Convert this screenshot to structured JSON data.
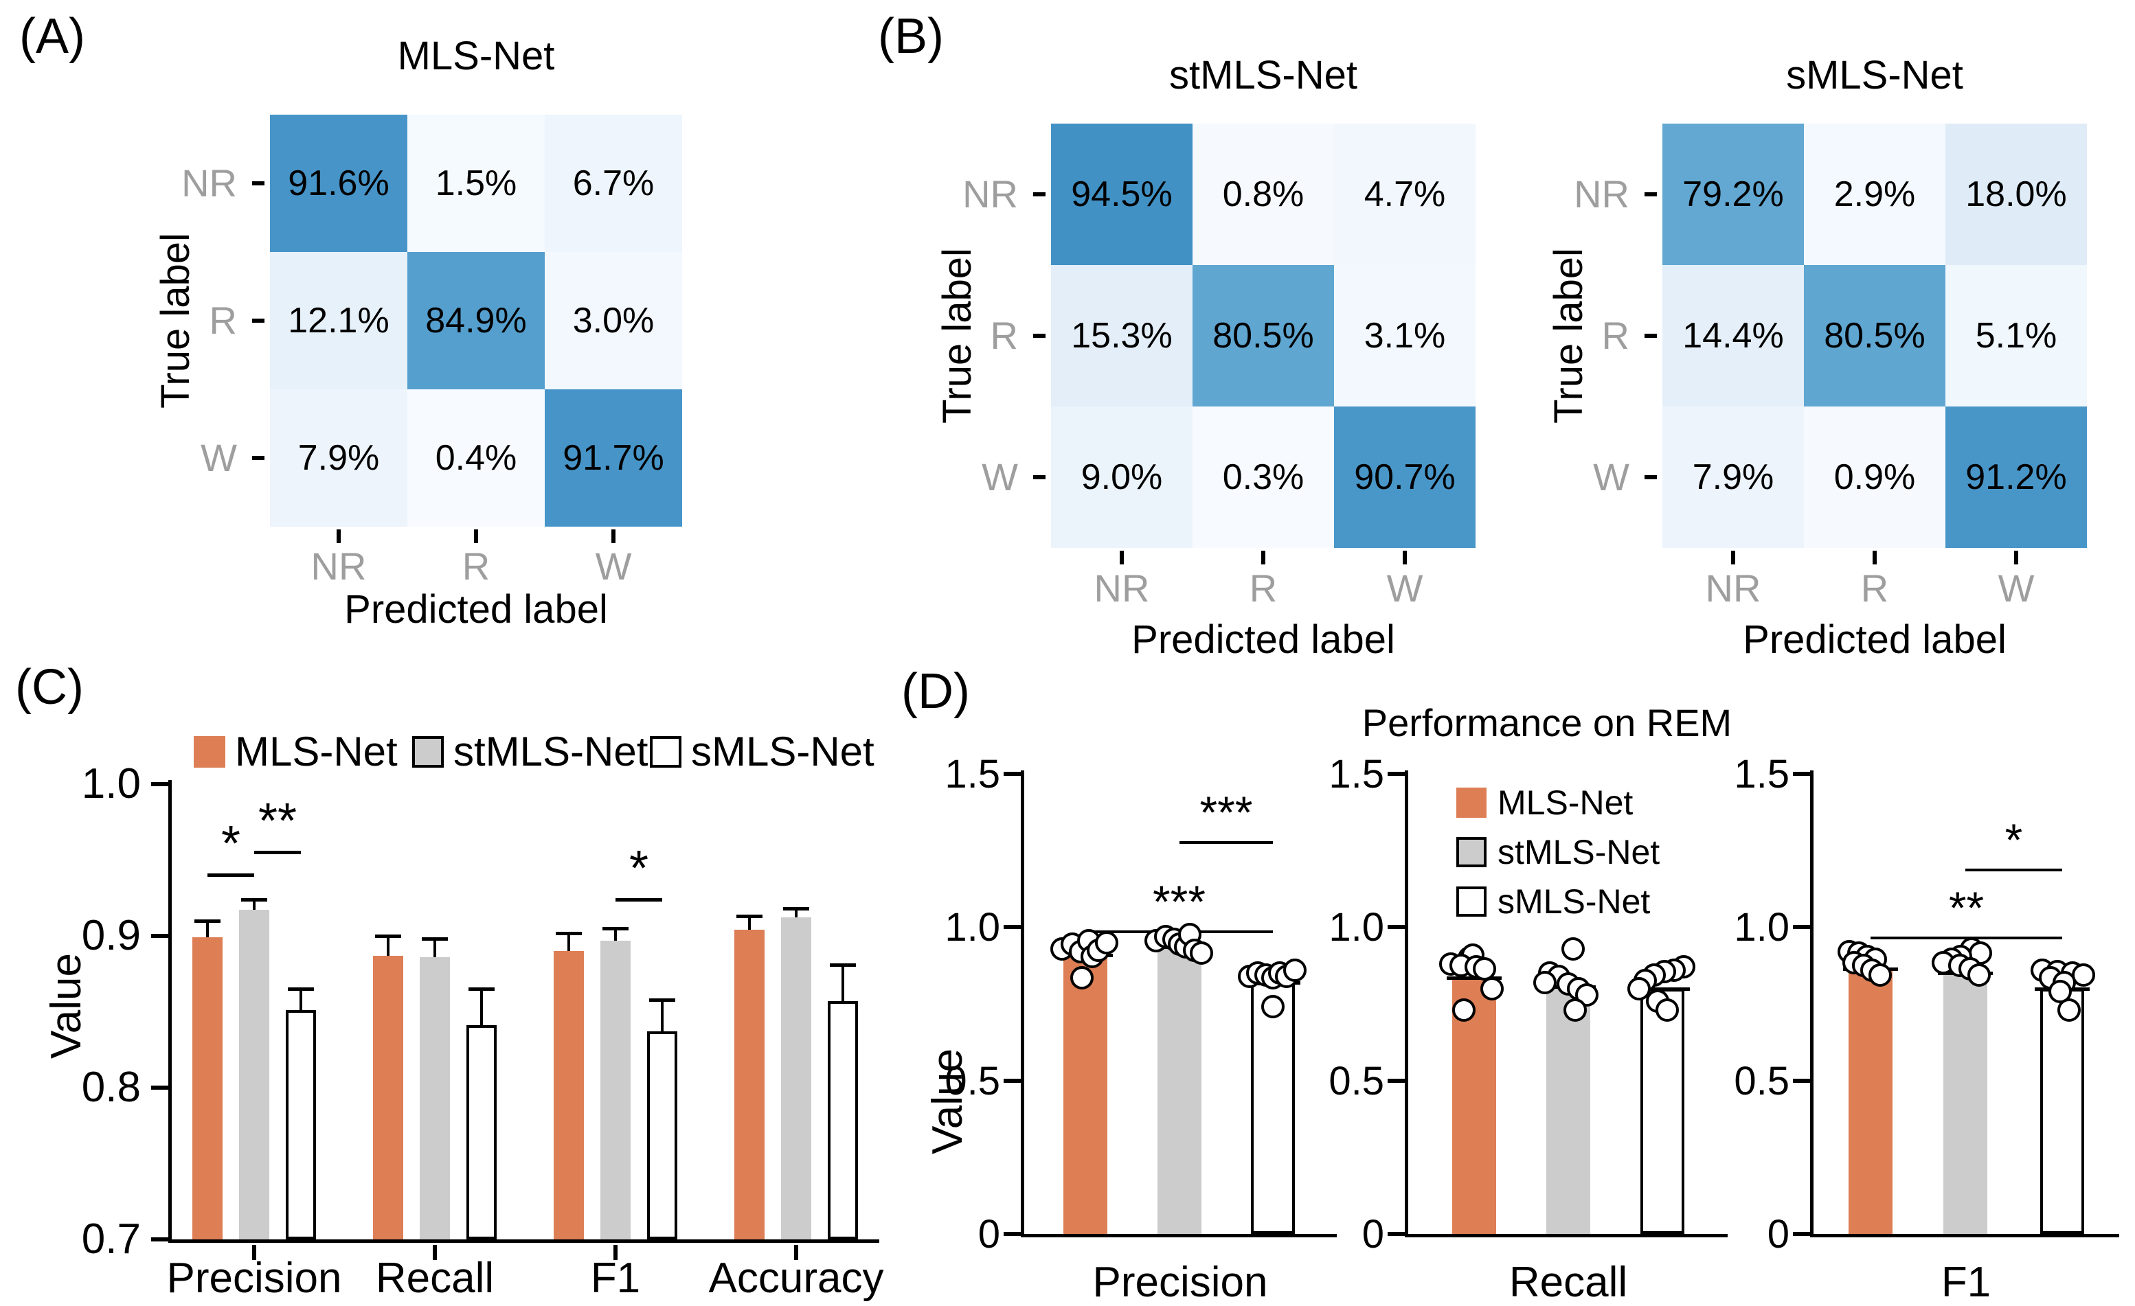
{
  "panel_labels": {
    "a": "(A)",
    "b": "(B)",
    "c": "(C)",
    "d": "(D)"
  },
  "d_title": "Performance on REM",
  "legend_labels": [
    "MLS-Net",
    "stMLS-Net",
    "sMLS-Net"
  ],
  "colors": {
    "mls_orange": "#DD7E55",
    "stmls_gray": "#CCCCCC",
    "smls_white": "#FFFFFF",
    "axis_black": "#000000",
    "tick_label_gray": "#9E9E9E",
    "heat_high": "#4191C5",
    "heat_low": "#F7FBFF"
  },
  "chart_data": [
    {
      "type": "heatmap",
      "panel": "A",
      "title": "MLS-Net",
      "xlabel": "Predicted label",
      "ylabel": "True label",
      "row_labels": [
        "NR",
        "R",
        "W"
      ],
      "col_labels": [
        "NR",
        "R",
        "W"
      ],
      "values_pct": [
        [
          91.6,
          1.5,
          6.7
        ],
        [
          12.1,
          84.9,
          3.0
        ],
        [
          7.9,
          0.4,
          91.7
        ]
      ],
      "cell_labels": [
        [
          "91.6%",
          "1.5%",
          "6.7%"
        ],
        [
          "12.1%",
          "84.9%",
          "3.0%"
        ],
        [
          "7.9%",
          "0.4%",
          "91.7%"
        ]
      ],
      "cell_colors": [
        [
          "#4795C8",
          "#F5FAFE",
          "#EEF5FC"
        ],
        [
          "#E7F1FA",
          "#559FCE",
          "#F3F8FE"
        ],
        [
          "#EDF4FC",
          "#F7FBFF",
          "#4795C8"
        ]
      ]
    },
    {
      "type": "heatmap",
      "panel": "B",
      "title": "stMLS-Net",
      "xlabel": "Predicted label",
      "ylabel": "True label",
      "row_labels": [
        "NR",
        "R",
        "W"
      ],
      "col_labels": [
        "NR",
        "R",
        "W"
      ],
      "values_pct": [
        [
          94.5,
          0.8,
          4.7
        ],
        [
          15.3,
          80.5,
          3.1
        ],
        [
          9.0,
          0.3,
          90.7
        ]
      ],
      "cell_labels": [
        [
          "94.5%",
          "0.8%",
          "4.7%"
        ],
        [
          "15.3%",
          "80.5%",
          "3.1%"
        ],
        [
          "9.0%",
          "0.3%",
          "90.7%"
        ]
      ],
      "cell_colors": [
        [
          "#4191C5",
          "#F6FAFF",
          "#F1F7FD"
        ],
        [
          "#E3EEF9",
          "#5FA6D1",
          "#F3F8FE"
        ],
        [
          "#EBF3FB",
          "#F7FBFF",
          "#4997C9"
        ]
      ]
    },
    {
      "type": "heatmap",
      "panel": "B",
      "title": "sMLS-Net",
      "xlabel": "Predicted label",
      "ylabel": "True label",
      "row_labels": [
        "NR",
        "R",
        "W"
      ],
      "col_labels": [
        "NR",
        "R",
        "W"
      ],
      "values_pct": [
        [
          79.2,
          2.9,
          18.0
        ],
        [
          14.4,
          80.5,
          5.1
        ],
        [
          7.9,
          0.9,
          91.2
        ]
      ],
      "cell_labels": [
        [
          "79.2%",
          "2.9%",
          "18.0%"
        ],
        [
          "14.4%",
          "80.5%",
          "5.1%"
        ],
        [
          "7.9%",
          "0.9%",
          "91.2%"
        ]
      ],
      "cell_colors": [
        [
          "#62A8D2",
          "#F3F9FE",
          "#DFECF7"
        ],
        [
          "#E4EFF9",
          "#5FA6D1",
          "#F0F7FD"
        ],
        [
          "#EDF4FC",
          "#F6FAFF",
          "#4896C8"
        ]
      ]
    },
    {
      "type": "bar",
      "panel": "C",
      "title": "",
      "xlabel": "",
      "ylabel": "Value",
      "ylim": [
        0.7,
        1.0
      ],
      "yticks": [
        0.7,
        0.8,
        0.9,
        1.0
      ],
      "ytick_labels": [
        "0.7",
        "0.8",
        "0.9",
        "1.0"
      ],
      "categories": [
        "Precision",
        "Recall",
        "F1",
        "Accuracy"
      ],
      "legend_position": "top",
      "series": [
        {
          "name": "MLS-Net",
          "color": "#DD7E55",
          "values": [
            0.899,
            0.887,
            0.89,
            0.904
          ],
          "errors": [
            0.011,
            0.013,
            0.012,
            0.009
          ]
        },
        {
          "name": "stMLS-Net",
          "color": "#CCCCCC",
          "values": [
            0.917,
            0.886,
            0.897,
            0.912
          ],
          "errors": [
            0.007,
            0.012,
            0.008,
            0.006
          ]
        },
        {
          "name": "sMLS-Net",
          "color": "#FFFFFF",
          "values": [
            0.851,
            0.841,
            0.837,
            0.857
          ],
          "errors": [
            0.014,
            0.024,
            0.021,
            0.024
          ]
        }
      ],
      "significance": [
        {
          "category_index": 0,
          "between": [
            0,
            1
          ],
          "label": "*",
          "y": 0.941
        },
        {
          "category_index": 0,
          "between": [
            1,
            2
          ],
          "label": "**",
          "y": 0.956
        },
        {
          "category_index": 2,
          "between": [
            1,
            2
          ],
          "label": "*",
          "y": 0.925
        }
      ]
    },
    {
      "type": "bar",
      "panel": "D",
      "group_title": "Performance on REM",
      "category": "Precision",
      "ylabel": "Value",
      "ylim": [
        0,
        1.5
      ],
      "yticks": [
        0,
        0.5,
        1.0,
        1.5
      ],
      "ytick_labels": [
        "0",
        "0.5",
        "1.0",
        "1.5"
      ],
      "series": [
        {
          "name": "MLS-Net",
          "color": "#DD7E55",
          "value": 0.91,
          "points": [
            [
              0.93,
              -1.0
            ],
            [
              0.945,
              -0.55
            ],
            [
              0.92,
              -0.2
            ],
            [
              0.955,
              0.15
            ],
            [
              0.905,
              0.3
            ],
            [
              0.925,
              0.55
            ],
            [
              0.95,
              0.9
            ],
            [
              0.835,
              -0.15
            ]
          ]
        },
        {
          "name": "stMLS-Net",
          "color": "#CCCCCC",
          "value": 0.935,
          "points": [
            [
              0.955,
              -1.0
            ],
            [
              0.97,
              -0.6
            ],
            [
              0.96,
              -0.25
            ],
            [
              0.945,
              0.0
            ],
            [
              0.935,
              0.25
            ],
            [
              0.975,
              0.45
            ],
            [
              0.925,
              0.65
            ],
            [
              0.915,
              0.95
            ]
          ]
        },
        {
          "name": "sMLS-Net",
          "color": "#FFFFFF",
          "value": 0.82,
          "points": [
            [
              0.84,
              -1.0
            ],
            [
              0.85,
              -0.65
            ],
            [
              0.845,
              -0.3
            ],
            [
              0.835,
              0.0
            ],
            [
              0.85,
              0.3
            ],
            [
              0.84,
              0.6
            ],
            [
              0.86,
              0.95
            ],
            [
              0.74,
              0.0
            ]
          ]
        }
      ],
      "significance": [
        {
          "between": [
            0,
            2
          ],
          "label": "***",
          "y": 0.99
        },
        {
          "between": [
            1,
            2
          ],
          "label": "***",
          "y": 1.28
        }
      ]
    },
    {
      "type": "bar",
      "panel": "D",
      "category": "Recall",
      "ylabel": "",
      "ylim": [
        0,
        1.5
      ],
      "yticks": [
        0,
        0.5,
        1.0,
        1.5
      ],
      "ytick_labels": [
        "0",
        "0.5",
        "1.0",
        "1.5"
      ],
      "legend_inset": true,
      "series": [
        {
          "name": "MLS-Net",
          "color": "#DD7E55",
          "value": 0.835,
          "points": [
            [
              0.9,
              -0.22
            ],
            [
              0.91,
              -0.06
            ],
            [
              0.88,
              -1.0
            ],
            [
              0.875,
              -0.55
            ],
            [
              0.87,
              0.1
            ],
            [
              0.865,
              0.45
            ],
            [
              0.8,
              0.75
            ],
            [
              0.73,
              -0.45
            ]
          ]
        },
        {
          "name": "stMLS-Net",
          "color": "#CCCCCC",
          "value": 0.805,
          "points": [
            [
              0.93,
              0.2
            ],
            [
              0.85,
              -0.8
            ],
            [
              0.84,
              -0.4
            ],
            [
              0.82,
              -1.0
            ],
            [
              0.815,
              0.0
            ],
            [
              0.8,
              0.45
            ],
            [
              0.78,
              0.8
            ],
            [
              0.73,
              0.3
            ]
          ]
        },
        {
          "name": "sMLS-Net",
          "color": "#FFFFFF",
          "value": 0.8,
          "points": [
            [
              0.87,
              0.9
            ],
            [
              0.86,
              0.5
            ],
            [
              0.855,
              0.1
            ],
            [
              0.845,
              -0.35
            ],
            [
              0.825,
              -0.75
            ],
            [
              0.8,
              -1.0
            ],
            [
              0.76,
              -0.2
            ],
            [
              0.73,
              0.2
            ]
          ]
        }
      ],
      "significance": []
    },
    {
      "type": "bar",
      "panel": "D",
      "category": "F1",
      "ylabel": "",
      "ylim": [
        0,
        1.5
      ],
      "yticks": [
        0,
        0.5,
        1.0,
        1.5
      ],
      "ytick_labels": [
        "0",
        "0.5",
        "1.0",
        "1.5"
      ],
      "series": [
        {
          "name": "MLS-Net",
          "color": "#DD7E55",
          "value": 0.865,
          "points": [
            [
              0.92,
              -0.9
            ],
            [
              0.915,
              -0.5
            ],
            [
              0.905,
              -0.15
            ],
            [
              0.895,
              0.2
            ],
            [
              0.885,
              -0.7
            ],
            [
              0.875,
              -0.3
            ],
            [
              0.86,
              0.05
            ],
            [
              0.845,
              0.4
            ]
          ]
        },
        {
          "name": "stMLS-Net",
          "color": "#CCCCCC",
          "value": 0.85,
          "points": [
            [
              0.93,
              0.25
            ],
            [
              0.915,
              0.65
            ],
            [
              0.905,
              -0.2
            ],
            [
              0.895,
              -0.6
            ],
            [
              0.885,
              -0.95
            ],
            [
              0.875,
              -0.25
            ],
            [
              0.865,
              0.2
            ],
            [
              0.845,
              0.6
            ]
          ]
        },
        {
          "name": "sMLS-Net",
          "color": "#FFFFFF",
          "value": 0.8,
          "points": [
            [
              0.86,
              -0.85
            ],
            [
              0.855,
              -0.2
            ],
            [
              0.85,
              0.45
            ],
            [
              0.845,
              0.9
            ],
            [
              0.835,
              -0.5
            ],
            [
              0.82,
              0.1
            ],
            [
              0.79,
              -0.1
            ],
            [
              0.73,
              0.3
            ]
          ]
        }
      ],
      "significance": [
        {
          "between": [
            0,
            2
          ],
          "label": "**",
          "y": 0.97
        },
        {
          "between": [
            1,
            2
          ],
          "label": "*",
          "y": 1.19
        }
      ]
    }
  ]
}
